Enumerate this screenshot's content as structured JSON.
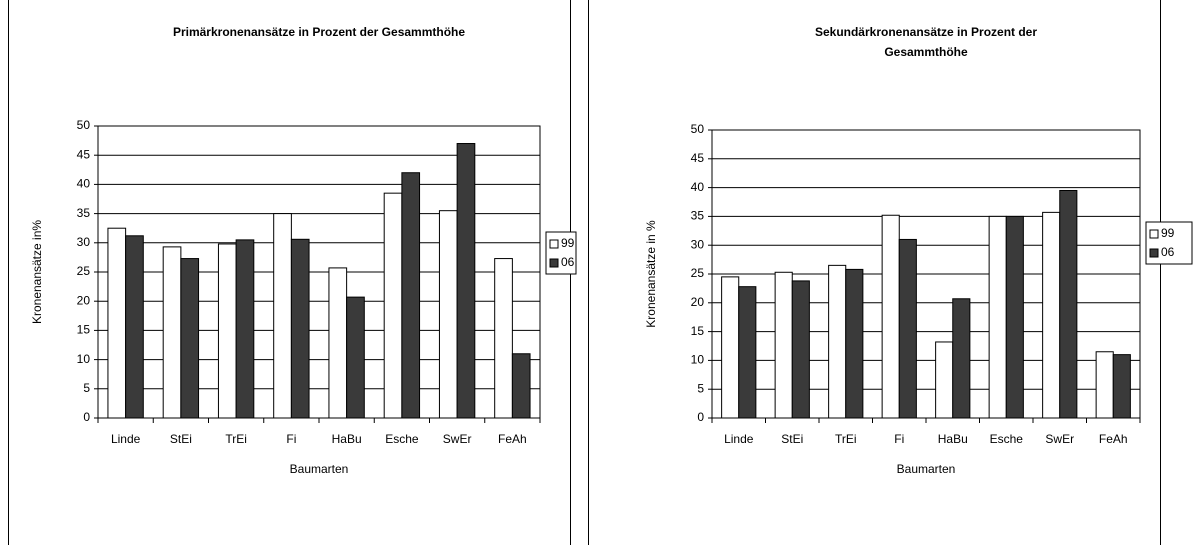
{
  "chart_data": [
    {
      "type": "bar",
      "title": "Primärkronenansätze in Prozent der Gesammthöhe",
      "x_label": "Baumarten",
      "y_label": "Kronenansätze in%",
      "categories": [
        "Linde",
        "StEi",
        "TrEi",
        "Fi",
        "HaBu",
        "Esche",
        "SwEr",
        "FeAh"
      ],
      "series": [
        {
          "name": "99",
          "color": "#ffffff",
          "values": [
            32.5,
            29.3,
            29.8,
            35,
            25.7,
            38.5,
            35.5,
            27.3
          ]
        },
        {
          "name": "06",
          "color": "#3a3a3a",
          "values": [
            31.2,
            27.3,
            30.5,
            30.6,
            20.7,
            42,
            47,
            11
          ]
        }
      ],
      "ylim": [
        0,
        50
      ],
      "yticks": [
        0,
        5,
        10,
        15,
        20,
        25,
        30,
        35,
        40,
        45,
        50
      ],
      "grid": true,
      "legend": "right"
    },
    {
      "type": "bar",
      "title": "Sekundärkronenansätze in Prozent der Gesammthöhe",
      "x_label": "Baumarten",
      "y_label": "Kronenansätze in %",
      "categories": [
        "Linde",
        "StEi",
        "TrEi",
        "Fi",
        "HaBu",
        "Esche",
        "SwEr",
        "FeAh"
      ],
      "series": [
        {
          "name": "99",
          "color": "#ffffff",
          "values": [
            24.5,
            25.3,
            26.5,
            35.2,
            13.2,
            35,
            35.7,
            11.5
          ]
        },
        {
          "name": "06",
          "color": "#3a3a3a",
          "values": [
            22.8,
            23.8,
            25.8,
            31,
            20.7,
            35,
            39.5,
            11
          ]
        }
      ],
      "ylim": [
        0,
        50
      ],
      "yticks": [
        0,
        5,
        10,
        15,
        20,
        25,
        30,
        35,
        40,
        45,
        50
      ],
      "grid": true,
      "legend": "right"
    }
  ]
}
